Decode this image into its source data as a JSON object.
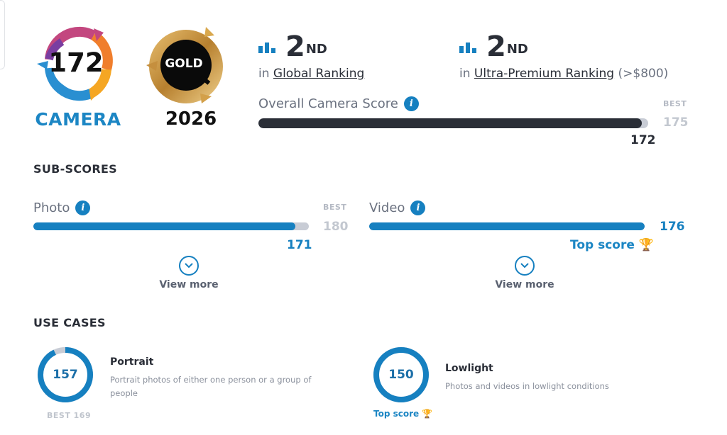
{
  "badge": {
    "score": "172",
    "label": "CAMERA",
    "gold_label": "GOLD",
    "year": "2026"
  },
  "rankings": [
    {
      "rank": "2",
      "suffix": "ND",
      "prefix": "in",
      "link": "Global Ranking",
      "extra": ""
    },
    {
      "rank": "2",
      "suffix": "ND",
      "prefix": "in",
      "link": "Ultra-Premium Ranking",
      "extra": "(>$800)"
    }
  ],
  "overall": {
    "title": "Overall Camera Score",
    "best_label": "BEST",
    "best_value": "175",
    "score": "172",
    "fill_fraction": 0.983
  },
  "subscores": {
    "title": "SUB-SCORES",
    "photo": {
      "label": "Photo",
      "best_label": "BEST",
      "best_value": "180",
      "score": "171",
      "fill_fraction": 0.95,
      "view_more": "View more"
    },
    "video": {
      "label": "Video",
      "score": "176",
      "fill_fraction": 1.0,
      "top_score": "Top score",
      "view_more": "View more"
    }
  },
  "use_cases": {
    "title": "USE CASES",
    "items": [
      {
        "score": "157",
        "title": "Portrait",
        "description": "Portrait photos of either one person or a group of people",
        "footer": "BEST 169",
        "fill_fraction": 0.929
      },
      {
        "score": "150",
        "title": "Lowlight",
        "description": "Photos and videos in lowlight conditions",
        "footer": "Top score",
        "fill_fraction": 1.0
      }
    ]
  },
  "colors": {
    "accent": "#1680c0",
    "dark": "#2a2e37",
    "track": "#c8ccd5",
    "gold": "#c8923a",
    "trophy": "#f5b731"
  },
  "icons": [
    "bar-chart-icon",
    "info-icon",
    "chevron-down-icon",
    "trophy-icon",
    "camera-badge-icon",
    "gold-badge-icon"
  ]
}
